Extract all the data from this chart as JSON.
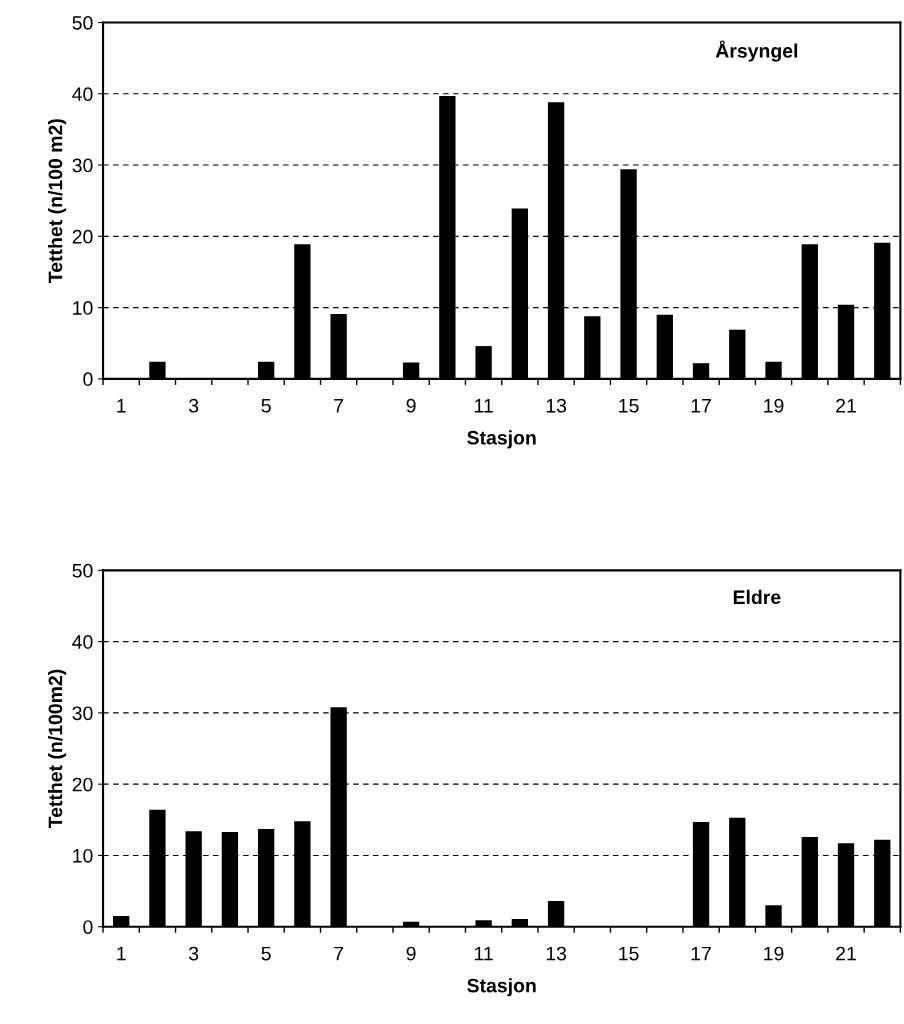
{
  "chart_data": [
    {
      "type": "bar",
      "title": "Årsyngel",
      "xlabel": "Stasjon",
      "ylabel": "Tetthet (n/100 m2)",
      "categories": [
        "1",
        null,
        "3",
        null,
        "5",
        null,
        "7",
        null,
        "9",
        null,
        "11",
        null,
        "13",
        null,
        "15",
        null,
        "17",
        null,
        "19",
        null,
        "21",
        null
      ],
      "values": [
        0,
        2.4,
        0,
        0,
        2.4,
        18.9,
        9.1,
        0,
        2.3,
        39.7,
        4.6,
        23.9,
        38.8,
        8.8,
        29.4,
        9.0,
        2.2,
        6.9,
        2.4,
        18.9,
        10.4,
        19.1
      ],
      "color": "#000000",
      "ylim": [
        0,
        50
      ],
      "yticks": [
        0,
        10,
        20,
        30,
        40,
        50
      ],
      "grid": "y",
      "legend": false
    },
    {
      "type": "bar",
      "title": "Eldre",
      "xlabel": "Stasjon",
      "ylabel": "Tetthet (n/100m2)",
      "categories": [
        "1",
        null,
        "3",
        null,
        "5",
        null,
        "7",
        null,
        "9",
        null,
        "11",
        null,
        "13",
        null,
        "15",
        null,
        "17",
        null,
        "19",
        null,
        "21",
        null
      ],
      "values": [
        1.5,
        16.4,
        13.4,
        13.3,
        13.7,
        14.8,
        30.8,
        0,
        0.7,
        0,
        0.9,
        1.1,
        3.6,
        0,
        0,
        0,
        14.7,
        15.3,
        3.0,
        12.6,
        11.7,
        12.2
      ],
      "color": "#000000",
      "ylim": [
        0,
        50
      ],
      "yticks": [
        0,
        10,
        20,
        30,
        40,
        50
      ],
      "grid": "y",
      "legend": false
    }
  ]
}
